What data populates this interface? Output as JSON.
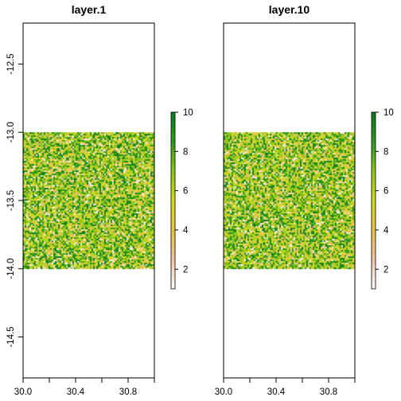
{
  "chart_data": [
    {
      "type": "heatmap",
      "title": "layer.1",
      "xlabel": "",
      "ylabel": "",
      "xlim": [
        30.0,
        31.0
      ],
      "ylim": [
        -14.8,
        -12.2
      ],
      "x_ticks": [
        30.0,
        30.4,
        30.8
      ],
      "x_tick_labels": [
        "30.0",
        "30.4",
        "30.8"
      ],
      "y_ticks": [
        -12.5,
        -13.0,
        -13.5,
        -14.0,
        -14.5
      ],
      "y_tick_labels": [
        "-12.5",
        "-13.0",
        "-13.5",
        "-14.0",
        "-14.5"
      ],
      "raster_extent": {
        "x": [
          30.0,
          31.0
        ],
        "y": [
          -14.0,
          -13.0
        ]
      },
      "value_range": [
        1,
        10
      ],
      "legend_ticks": [
        2,
        4,
        6,
        8,
        10
      ],
      "legend_tick_labels": [
        "2",
        "4",
        "6",
        "8",
        "10"
      ],
      "legend_placement": "right",
      "grid": false
    },
    {
      "type": "heatmap",
      "title": "layer.10",
      "xlabel": "",
      "ylabel": "",
      "xlim": [
        30.0,
        31.0
      ],
      "ylim": [
        -14.8,
        -12.2
      ],
      "x_ticks": [
        30.0,
        30.4,
        30.8
      ],
      "x_tick_labels": [
        "30.0",
        "30.4",
        "30.8"
      ],
      "y_ticks": [
        -12.5,
        -13.0,
        -13.5,
        -14.0,
        -14.5
      ],
      "y_tick_labels": [],
      "raster_extent": {
        "x": [
          30.0,
          31.0
        ],
        "y": [
          -14.0,
          -13.0
        ]
      },
      "value_range": [
        1,
        10
      ],
      "legend_ticks": [
        2,
        4,
        6,
        8,
        10
      ],
      "legend_tick_labels": [
        "2",
        "4",
        "6",
        "8",
        "10"
      ],
      "legend_placement": "right",
      "grid": false
    }
  ],
  "colors": {
    "scale": [
      "#ffffff",
      "#f2c7a8",
      "#e9c244",
      "#d3dc1e",
      "#8cc81b",
      "#2f9a21",
      "#0b7a1c"
    ],
    "frame": "#000000"
  }
}
